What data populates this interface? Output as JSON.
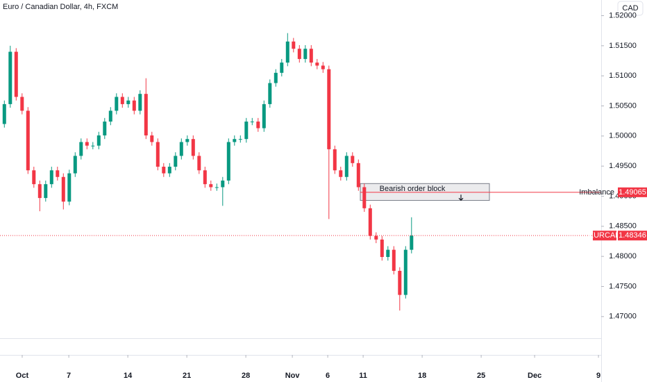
{
  "chart_data": {
    "type": "candlestick",
    "title": "Euro / Canadian Dollar, 4h, FXCM",
    "currency": "CAD",
    "up_color": "#089981",
    "down_color": "#f23645",
    "grid": false,
    "x": [
      0,
      0.5,
      1,
      1.5,
      2,
      2.5,
      3,
      3.5,
      4,
      4.5,
      5,
      5.5,
      6,
      6.5,
      7,
      7.5,
      8,
      8.5,
      9,
      9.5,
      10,
      10.5,
      11,
      11.5,
      12,
      12.5,
      13,
      13.5,
      14,
      14.5,
      15,
      15.5,
      16,
      16.5,
      17,
      17.5,
      18,
      18.5,
      19,
      19.5,
      20,
      20.5,
      21,
      21.5,
      22,
      22.5,
      23,
      23.5,
      24,
      24.5,
      25,
      25.5,
      26,
      26.5,
      27,
      27.5,
      28,
      28.5,
      29,
      29.5,
      30,
      30.5,
      31,
      31.5,
      32,
      32.5,
      33,
      33.5,
      34,
      34.5
    ],
    "open": [
      1.502,
      1.5053,
      1.514,
      1.5065,
      1.5042,
      1.4943,
      1.492,
      1.4897,
      1.492,
      1.4943,
      1.4932,
      1.4891,
      1.4938,
      1.4967,
      1.499,
      1.4984,
      1.4984,
      1.5001,
      1.5024,
      1.5042,
      1.5065,
      1.5053,
      1.5059,
      1.5042,
      1.507,
      1.5001,
      1.499,
      1.4949,
      1.4938,
      1.4949,
      1.4967,
      1.499,
      1.4995,
      1.4967,
      1.4943,
      1.492,
      1.4915,
      1.4915,
      1.4926,
      1.499,
      1.4995,
      1.4995,
      1.5024,
      1.5024,
      1.5013,
      1.5053,
      1.5088,
      1.5105,
      1.5122,
      1.5157,
      1.5145,
      1.5128,
      1.5145,
      1.5122,
      1.5117,
      1.5111,
      1.4978,
      1.4943,
      1.4932,
      1.4967,
      1.4955,
      1.4915,
      1.488,
      1.4834,
      1.4828,
      1.4799,
      1.4811,
      1.4776,
      1.4736,
      1.4811
    ],
    "high": [
      1.5059,
      1.515,
      1.5146,
      1.5071,
      1.5048,
      1.4949,
      1.4926,
      1.4926,
      1.4949,
      1.4949,
      1.4938,
      1.4944,
      1.4973,
      1.4996,
      1.4996,
      1.499,
      1.5007,
      1.503,
      1.5048,
      1.5071,
      1.5071,
      1.5065,
      1.5065,
      1.5076,
      1.5096,
      1.5007,
      1.4996,
      1.4955,
      1.4955,
      1.4973,
      1.4996,
      1.5001,
      1.5001,
      1.4973,
      1.4949,
      1.4926,
      1.4921,
      1.4932,
      1.4996,
      1.5001,
      1.5001,
      1.503,
      1.503,
      1.503,
      1.5059,
      1.5094,
      1.5111,
      1.5128,
      1.5171,
      1.5163,
      1.5151,
      1.5151,
      1.5151,
      1.5128,
      1.5123,
      1.5117,
      1.4984,
      1.4949,
      1.4973,
      1.4973,
      1.4961,
      1.4921,
      1.4886,
      1.484,
      1.4834,
      1.4817,
      1.4817,
      1.4782,
      1.4817,
      1.4865
    ],
    "low": [
      1.5014,
      1.5047,
      1.5059,
      1.5036,
      1.4937,
      1.4914,
      1.4875,
      1.4891,
      1.4914,
      1.4926,
      1.4878,
      1.4885,
      1.4932,
      1.4961,
      1.4978,
      1.4978,
      1.4978,
      1.4995,
      1.5018,
      1.5036,
      1.5047,
      1.5047,
      1.5036,
      1.5036,
      1.4995,
      1.4984,
      1.4943,
      1.4932,
      1.4932,
      1.4943,
      1.4961,
      1.4984,
      1.4961,
      1.4937,
      1.4914,
      1.4909,
      1.4909,
      1.4884,
      1.492,
      1.4984,
      1.4989,
      1.4989,
      1.5018,
      1.5007,
      1.5007,
      1.5047,
      1.5082,
      1.5099,
      1.5116,
      1.5139,
      1.5122,
      1.5122,
      1.5116,
      1.5111,
      1.5105,
      1.4862,
      1.4937,
      1.4926,
      1.4926,
      1.4949,
      1.4909,
      1.4874,
      1.4828,
      1.4822,
      1.4793,
      1.4793,
      1.477,
      1.471,
      1.473,
      1.4805
    ],
    "close": [
      1.5053,
      1.514,
      1.5065,
      1.5042,
      1.4943,
      1.492,
      1.4897,
      1.492,
      1.4943,
      1.4932,
      1.4891,
      1.4938,
      1.4967,
      1.499,
      1.4984,
      1.4984,
      1.5001,
      1.5024,
      1.5042,
      1.5065,
      1.5053,
      1.5059,
      1.5042,
      1.507,
      1.5001,
      1.499,
      1.4949,
      1.4938,
      1.4949,
      1.4967,
      1.499,
      1.4995,
      1.4967,
      1.4943,
      1.492,
      1.4915,
      1.4915,
      1.4926,
      1.499,
      1.4995,
      1.4995,
      1.5024,
      1.5024,
      1.5013,
      1.5053,
      1.5088,
      1.5105,
      1.5122,
      1.5157,
      1.5145,
      1.5128,
      1.5145,
      1.5122,
      1.5117,
      1.5111,
      1.4978,
      1.4943,
      1.4932,
      1.4967,
      1.4955,
      1.4915,
      1.488,
      1.4834,
      1.4828,
      1.4799,
      1.4811,
      1.4776,
      1.4736,
      1.4811,
      1.48346
    ],
    "xlim": [
      -0.37,
      50.57
    ],
    "xticks": [
      {
        "value": 1.51,
        "label": "Oct"
      },
      {
        "value": 5.46,
        "label": "7"
      },
      {
        "value": 10.46,
        "label": "14"
      },
      {
        "value": 15.46,
        "label": "21"
      },
      {
        "value": 20.46,
        "label": "28"
      },
      {
        "value": 24.4,
        "label": "Nov"
      },
      {
        "value": 27.4,
        "label": "6"
      },
      {
        "value": 30.4,
        "label": "11"
      },
      {
        "value": 35.4,
        "label": "18"
      },
      {
        "value": 40.4,
        "label": "25"
      },
      {
        "value": 44.93,
        "label": "Dec"
      },
      {
        "value": 50.34,
        "label": "9"
      }
    ],
    "ylim": [
      1.4664,
      1.5226
    ],
    "yticks": [
      {
        "value": 1.52,
        "label": "1.52000"
      },
      {
        "value": 1.515,
        "label": "1.51500"
      },
      {
        "value": 1.51,
        "label": "1.51000"
      },
      {
        "value": 1.505,
        "label": "1.50500"
      },
      {
        "value": 1.5,
        "label": "1.50000"
      },
      {
        "value": 1.495,
        "label": "1.49500"
      },
      {
        "value": 1.49,
        "label": "1.49000"
      },
      {
        "value": 1.485,
        "label": "1.48500"
      },
      {
        "value": 1.48,
        "label": "1.48000"
      },
      {
        "value": 1.475,
        "label": "1.47500"
      },
      {
        "value": 1.47,
        "label": "1.47000"
      }
    ],
    "order_block": {
      "label": "Bearish order block",
      "top": 1.4921,
      "bottom": 1.4893,
      "x0": 30.16,
      "x1": 41.1
    },
    "imbalance": {
      "label": "Imbalance",
      "value": 1.49065,
      "value_label": "1.49065",
      "x0": 30.16,
      "color": "#f23645"
    },
    "last_price": {
      "symbol": "EURCAD",
      "value": 1.48346,
      "label": "1.48346",
      "color": "#f23645"
    }
  }
}
